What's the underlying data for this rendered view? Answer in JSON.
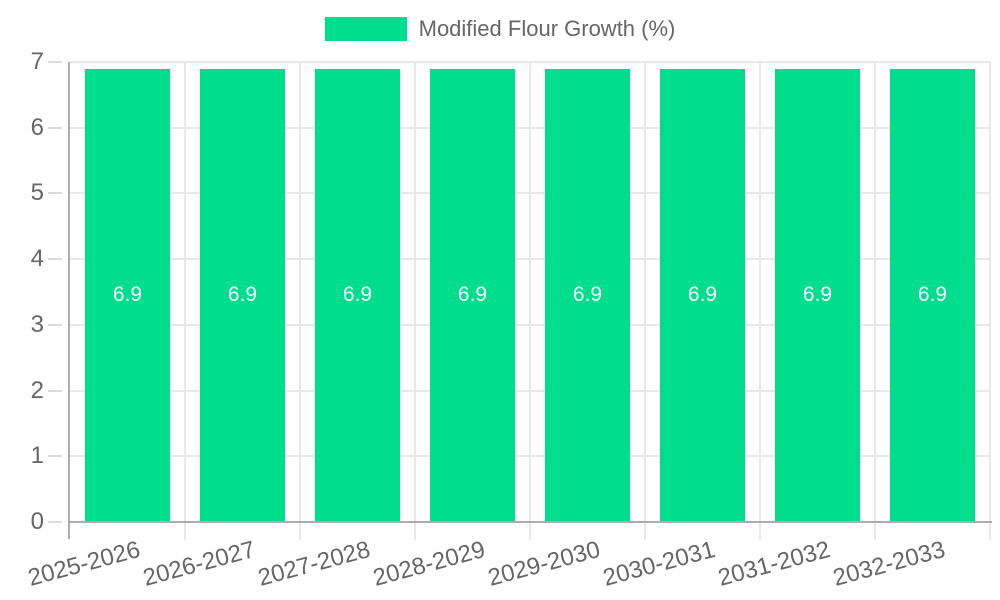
{
  "chart_data": {
    "type": "bar",
    "title": "",
    "legend": {
      "position": "top",
      "label": "Modified Flour Growth (%)"
    },
    "categories": [
      "2025-2026",
      "2026-2027",
      "2027-2028",
      "2028-2029",
      "2029-2030",
      "2030-2031",
      "2031-2032",
      "2032-2033"
    ],
    "series": [
      {
        "name": "Modified Flour Growth (%)",
        "values": [
          6.9,
          6.9,
          6.9,
          6.9,
          6.9,
          6.9,
          6.9,
          6.9
        ],
        "value_labels": [
          "6.9",
          "6.9",
          "6.9",
          "6.9",
          "6.9",
          "6.9",
          "6.9",
          "6.9"
        ]
      }
    ],
    "xlabel": "",
    "ylabel": "",
    "ylim": [
      0,
      7
    ],
    "yticks": [
      "0",
      "1",
      "2",
      "3",
      "4",
      "5",
      "6",
      "7"
    ],
    "grid": true,
    "colors": {
      "bar": "#00DE8D",
      "bar_label": "#FFFFFF",
      "axis_text": "#666666",
      "axis_line": "#ADADAD",
      "gridline": "#E8E8E8",
      "tick_mark": "#DCDCDC",
      "background": "#FFFFFF"
    }
  }
}
